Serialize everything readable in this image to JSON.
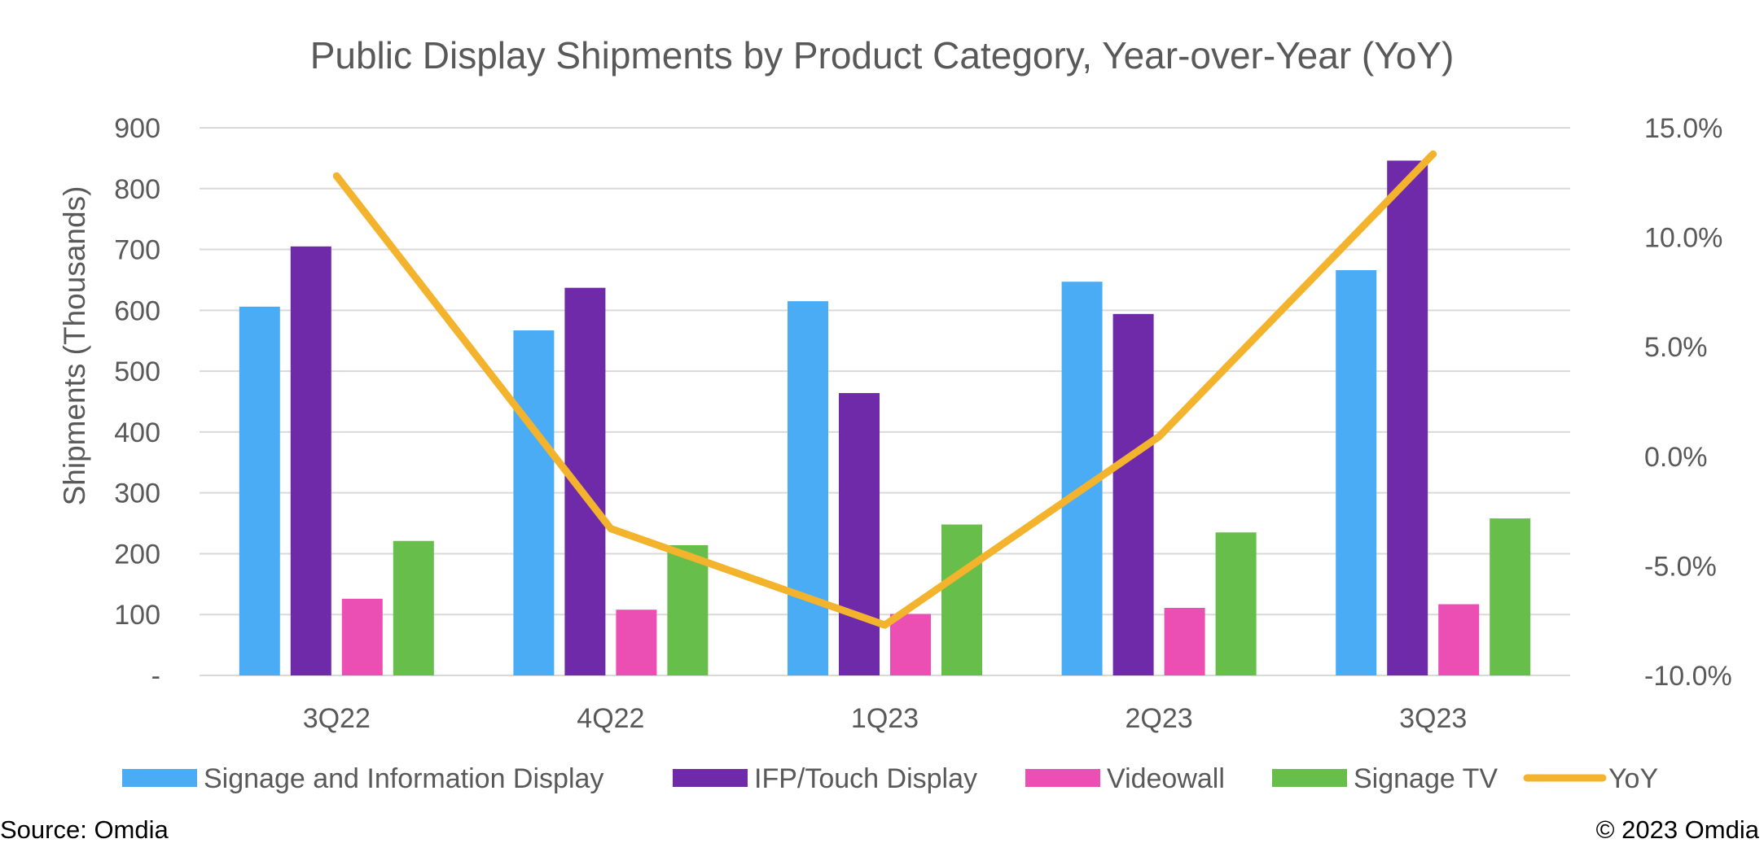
{
  "chart_data": {
    "type": "bar",
    "title": "Public Display Shipments by Product Category, Year-over-Year (YoY)",
    "ylabel": "Shipments (Thousands)",
    "xlabel": "",
    "categories": [
      "3Q22",
      "4Q22",
      "1Q23",
      "2Q23",
      "3Q23"
    ],
    "ylim": [
      0,
      900
    ],
    "y_ticks": [
      0,
      100,
      200,
      300,
      400,
      500,
      600,
      700,
      800,
      900
    ],
    "y_tick_labels": [
      "-",
      "100",
      "200",
      "300",
      "400",
      "500",
      "600",
      "700",
      "800",
      "900"
    ],
    "y2lim": [
      -10.0,
      15.0
    ],
    "y2_ticks": [
      -10,
      -5,
      0,
      5,
      10,
      15
    ],
    "y2_tick_labels": [
      "-10.0%",
      "-5.0%",
      "0.0%",
      "5.0%",
      "10.0%",
      "15.0%"
    ],
    "grid": true,
    "legend_position": "bottom",
    "series": [
      {
        "name": "Signage and Information Display",
        "type": "bar",
        "color": "#4BACF6",
        "values": [
          606,
          567,
          615,
          647,
          666
        ]
      },
      {
        "name": "IFP/Touch Display",
        "type": "bar",
        "color": "#6E2AA8",
        "values": [
          705,
          637,
          464,
          594,
          846
        ]
      },
      {
        "name": "Videowall",
        "type": "bar",
        "color": "#EC4FB3",
        "values": [
          126,
          108,
          101,
          111,
          117
        ]
      },
      {
        "name": "Signage TV",
        "type": "bar",
        "color": "#67BE4B",
        "values": [
          221,
          214,
          248,
          235,
          258
        ]
      },
      {
        "name": "YoY",
        "type": "line",
        "axis": "secondary",
        "color": "#F3B32C",
        "values": [
          12.8,
          -3.3,
          -7.7,
          0.9,
          13.8
        ]
      }
    ]
  },
  "footer": {
    "source": "Source: Omdia",
    "copyright": "© 2023 Omdia"
  }
}
